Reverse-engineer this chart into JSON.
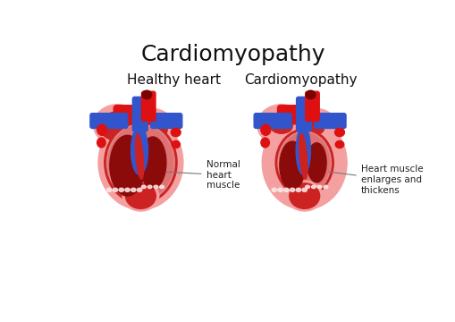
{
  "title": "Cardiomyopathy",
  "title_fontsize": 18,
  "subtitle_left": "Healthy heart",
  "subtitle_right": "Cardiomyopathy",
  "subtitle_fontsize": 11,
  "label_left": "Normal\nheart\nmuscle",
  "label_right": "Heart muscle\nenlarges and\nthickens",
  "background_color": "#ffffff",
  "pink_outer": "#f4a0a0",
  "red_muscle": "#cc2222",
  "dark_cavity": "#8b0a0a",
  "blue_vessel": "#3355cc",
  "blue_dark": "#1a3399",
  "red_bright": "#dd1111",
  "pink_inner_wall": "#f0c0c0",
  "valve_white": "#ffe8e8",
  "dark_red": "#7a0000",
  "aorta_red": "#bb1111",
  "label_color": "#222222",
  "line_color": "#777777"
}
